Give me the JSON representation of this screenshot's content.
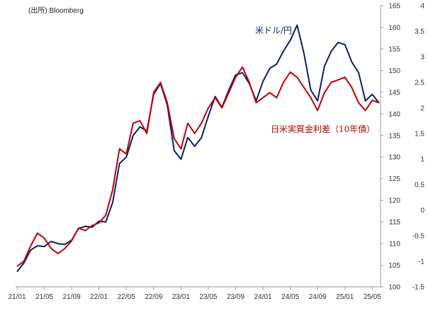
{
  "source_note": "(出所) Bloomberg",
  "colors": {
    "usd_jpy": "#0b1f6b",
    "real_rate_diff": "#c00000",
    "axis": "#9a9a9a"
  },
  "chart_data": {
    "type": "line",
    "x": [
      "21/01",
      "21/02",
      "21/03",
      "21/04",
      "21/05",
      "21/06",
      "21/07",
      "21/08",
      "21/09",
      "21/10",
      "21/11",
      "21/12",
      "22/01",
      "22/02",
      "22/03",
      "22/04",
      "22/05",
      "22/06",
      "22/07",
      "22/08",
      "22/09",
      "22/10",
      "22/11",
      "22/12",
      "23/01",
      "23/02",
      "23/03",
      "23/04",
      "23/05",
      "23/06",
      "23/07",
      "23/08",
      "23/09",
      "23/10",
      "23/11",
      "23/12",
      "24/01",
      "24/02",
      "24/03",
      "24/04",
      "24/05",
      "24/06",
      "24/07",
      "24/08",
      "24/09",
      "24/10",
      "24/11",
      "24/12",
      "25/01",
      "25/02",
      "25/03",
      "25/04",
      "25/05",
      "25/06"
    ],
    "xticks": [
      "21/01",
      "21/05",
      "21/09",
      "22/01",
      "22/05",
      "22/09",
      "23/01",
      "23/05",
      "23/09",
      "24/01",
      "24/05",
      "24/09",
      "25/01",
      "25/05"
    ],
    "y_left": {
      "ylim": [
        100,
        165
      ],
      "ticks": [
        100,
        105,
        110,
        115,
        120,
        125,
        130,
        135,
        140,
        145,
        150,
        155,
        160,
        165
      ]
    },
    "y_right": {
      "ylim": [
        -1.5,
        4
      ],
      "ticks": [
        "-1.5",
        "-1",
        "-0.5",
        "0",
        "0.5",
        "1",
        "1.5",
        "2",
        "2.5",
        "3",
        "3.5",
        "4"
      ]
    },
    "series": [
      {
        "name": "米ドル/円",
        "axis": "left",
        "values": [
          103.5,
          105.5,
          108.5,
          109.5,
          109.3,
          110.5,
          110.0,
          109.8,
          110.8,
          113.5,
          114.0,
          113.8,
          115.2,
          115.0,
          119.5,
          128.5,
          130.0,
          135.0,
          137.0,
          136.0,
          144.5,
          147.0,
          142.0,
          131.5,
          129.5,
          134.5,
          132.5,
          134.5,
          139.5,
          144.0,
          141.5,
          145.5,
          149.0,
          149.5,
          147.0,
          143.0,
          147.5,
          150.5,
          151.5,
          154.5,
          157.0,
          160.5,
          154.0,
          145.5,
          143.0,
          151.0,
          154.5,
          156.5,
          156.0,
          152.0,
          149.5,
          143.0,
          144.5,
          142.5
        ]
      },
      {
        "name": "日米実質金利差（10年債）",
        "axis": "right",
        "values": [
          -1.1,
          -1.0,
          -0.7,
          -0.45,
          -0.55,
          -0.75,
          -0.85,
          -0.75,
          -0.6,
          -0.35,
          -0.4,
          -0.3,
          -0.25,
          -0.1,
          0.4,
          1.2,
          1.1,
          1.7,
          1.75,
          1.5,
          2.3,
          2.5,
          2.1,
          1.4,
          1.2,
          1.7,
          1.5,
          1.7,
          2.0,
          2.2,
          2.0,
          2.3,
          2.6,
          2.8,
          2.5,
          2.1,
          2.2,
          2.3,
          2.2,
          2.5,
          2.7,
          2.6,
          2.4,
          2.2,
          1.95,
          2.3,
          2.5,
          2.55,
          2.6,
          2.4,
          2.1,
          1.95,
          2.15,
          2.1
        ]
      }
    ],
    "grid": false,
    "legend": "inline labels"
  }
}
